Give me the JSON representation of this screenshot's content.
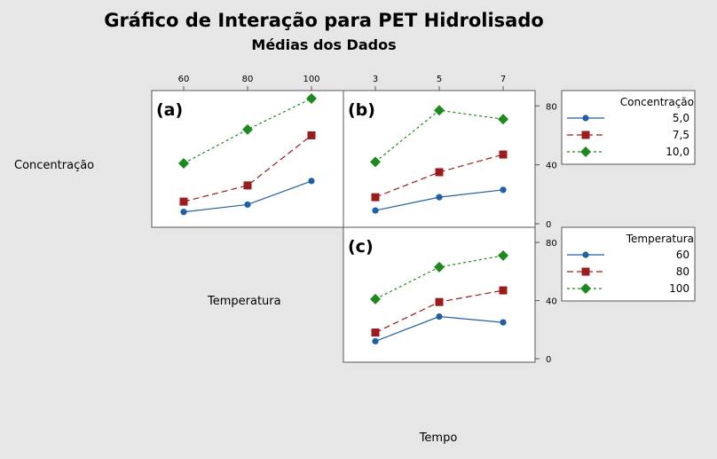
{
  "title": "Gráfico de Interação para PET Hidrolisado",
  "subtitle": "Médias dos Dados",
  "colors": {
    "blue": "#1f5fa6",
    "red": "#9b1c1c",
    "green": "#1e8a1e",
    "background": "#e6e6e6",
    "panel": "#ffffff"
  },
  "row_labels": {
    "concentracao": "Concentração",
    "temperatura": "Temperatura"
  },
  "col_label_tempo": "Tempo",
  "y_ticks": [
    "0",
    "40",
    "80"
  ],
  "legends": [
    {
      "title": "Concentração",
      "entries": [
        "5,0",
        "7,5",
        "10,0"
      ]
    },
    {
      "title": "Temperatura",
      "entries": [
        "60",
        "80",
        "100"
      ]
    }
  ],
  "chart_data": [
    {
      "type": "line",
      "panel": "(a)",
      "x_variable": "Temperatura",
      "trace_variable": "Concentração",
      "x": [
        60,
        80,
        100
      ],
      "x_ticks": [
        "60",
        "80",
        "100"
      ],
      "ylim": [
        0,
        88
      ],
      "series": [
        {
          "name": "5,0",
          "values": [
            8,
            13,
            29
          ]
        },
        {
          "name": "7,5",
          "values": [
            15,
            26,
            60
          ]
        },
        {
          "name": "10,0",
          "values": [
            41,
            64,
            85
          ]
        }
      ]
    },
    {
      "type": "line",
      "panel": "(b)",
      "x_variable": "Tempo",
      "trace_variable": "Concentração",
      "x": [
        3,
        5,
        7
      ],
      "x_ticks": [
        "3",
        "5",
        "7"
      ],
      "ylim": [
        0,
        88
      ],
      "y_ticks": [
        0,
        40,
        80
      ],
      "series": [
        {
          "name": "5,0",
          "values": [
            9,
            18,
            23
          ]
        },
        {
          "name": "7,5",
          "values": [
            18,
            35,
            47
          ]
        },
        {
          "name": "10,0",
          "values": [
            42,
            77,
            71
          ]
        }
      ]
    },
    {
      "type": "line",
      "panel": "(c)",
      "x_variable": "Tempo",
      "trace_variable": "Temperatura",
      "x": [
        3,
        5,
        7
      ],
      "x_ticks": [
        "3",
        "5",
        "7"
      ],
      "ylim": [
        0,
        88
      ],
      "y_ticks": [
        0,
        40,
        80
      ],
      "series": [
        {
          "name": "60",
          "values": [
            12,
            29,
            25
          ]
        },
        {
          "name": "80",
          "values": [
            18,
            39,
            47
          ]
        },
        {
          "name": "100",
          "values": [
            41,
            63,
            71
          ]
        }
      ]
    }
  ]
}
